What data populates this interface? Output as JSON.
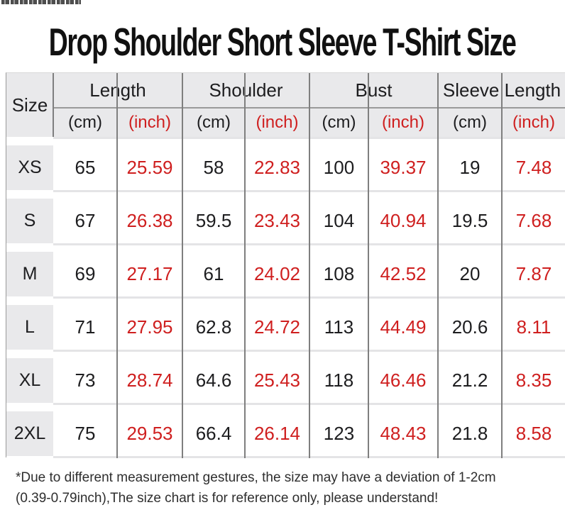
{
  "page": {
    "title": "Drop Shoulder Short Sleeve T-Shirt Size",
    "footnote": {
      "line1": "*Due to different measurement gestures, the size may have a deviation of 1-2cm",
      "line2": "(0.39-0.79inch),The size chart is for reference only, please understand!"
    }
  },
  "colors": {
    "accent_red": "#cf1f1f",
    "header_bg": "#e9e9eb",
    "grid_line": "#7f7f7f",
    "row_separator": "#e4e4e6",
    "text_black": "#1d1d1f"
  },
  "table": {
    "corner_label": "Size",
    "column_groups": [
      {
        "label": "Length"
      },
      {
        "label": "Shoulder"
      },
      {
        "label": "Bust"
      },
      {
        "label": "Sleeve Length"
      }
    ],
    "unit_labels": {
      "cm": "(cm)",
      "inch": "(inch)"
    }
  },
  "chart_data": {
    "type": "table",
    "title": "Drop Shoulder Short Sleeve T-Shirt Size",
    "columns": [
      "Size",
      "Length (cm)",
      "Length (inch)",
      "Shoulder (cm)",
      "Shoulder (inch)",
      "Bust (cm)",
      "Bust (inch)",
      "Sleeve Length (cm)",
      "Sleeve Length (inch)"
    ],
    "rows": [
      [
        "XS",
        65,
        25.59,
        58,
        22.83,
        100,
        39.37,
        19,
        7.48
      ],
      [
        "S",
        67,
        26.38,
        59.5,
        23.43,
        104,
        40.94,
        19.5,
        7.68
      ],
      [
        "M",
        69,
        27.17,
        61,
        24.02,
        108,
        42.52,
        20,
        7.87
      ],
      [
        "L",
        71,
        27.95,
        62.8,
        24.72,
        113,
        44.49,
        20.6,
        8.11
      ],
      [
        "XL",
        73,
        28.74,
        64.6,
        25.43,
        118,
        46.46,
        21.2,
        8.35
      ],
      [
        "2XL",
        75,
        29.53,
        66.4,
        26.14,
        123,
        48.43,
        21.8,
        8.58
      ]
    ]
  }
}
